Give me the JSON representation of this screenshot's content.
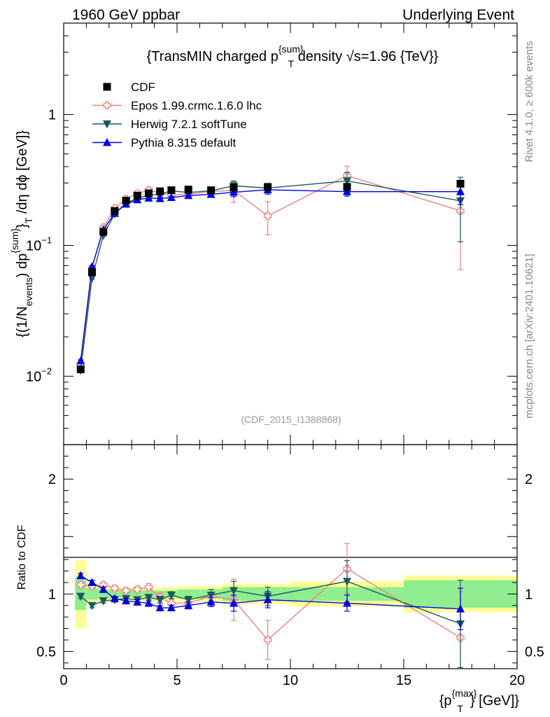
{
  "header": {
    "left": "1960 GeV ppbar",
    "right": "Underlying Event"
  },
  "side_labels": {
    "rivet": "Rivet 4.1.0, ≥ 600k events",
    "mcplots": "mcplots.cern.ch [arXiv:2401.10621]"
  },
  "chart_data": {
    "type": "line",
    "title": "{TransMIN charged p^{sum}_T density √s=1.96 {TeV}}",
    "title_parts": {
      "prefix": "{TransMIN charged p",
      "sup": "{sum}",
      "sub": "T",
      "suffix": " density √s=1.96 {TeV}}"
    },
    "analysis_id": "(CDF_2015_I1388868)",
    "xlabel": "{p_T^{max}} [GeV]}",
    "xlabel_parts": {
      "prefix": "{p",
      "sup": "{max}",
      "sub": "T",
      "suffix": "} [GeV]}"
    },
    "ylabel": "{(1/N_events) dp^{sum}_T /dη dϕ [GeV]}",
    "ylabel_parts": {
      "p1": "{(1/N",
      "sub1": "events",
      "p2": ") dp",
      "sup2": "{sum}",
      "p3": "}",
      "sub3": "T",
      "p4": " /dη  dϕ [GeV]}"
    },
    "ratio_ylabel": "Ratio to CDF",
    "xlim": [
      0,
      20
    ],
    "ylim": [
      0.003,
      5
    ],
    "yscale": "log",
    "ratio_ylim": [
      0.35,
      2.3
    ],
    "x_ticks": [
      "0",
      "5",
      "10",
      "15",
      "20"
    ],
    "y_tick_labels": [
      {
        "value": 0.01,
        "base": "10",
        "exp": "−2"
      },
      {
        "value": 0.1,
        "base": "10",
        "exp": "−1"
      },
      {
        "value": 1,
        "base": "1",
        "exp": ""
      }
    ],
    "ratio_y_ticks": [
      "0.5",
      "1",
      "2"
    ],
    "legend_position": "top-left",
    "bins": [
      {
        "lo": 0.5,
        "hi": 1.0,
        "x": 0.75
      },
      {
        "lo": 1.0,
        "hi": 1.5,
        "x": 1.25
      },
      {
        "lo": 1.5,
        "hi": 2.0,
        "x": 1.75
      },
      {
        "lo": 2.0,
        "hi": 2.5,
        "x": 2.25
      },
      {
        "lo": 2.5,
        "hi": 3.0,
        "x": 2.75
      },
      {
        "lo": 3.0,
        "hi": 3.5,
        "x": 3.25
      },
      {
        "lo": 3.5,
        "hi": 4.0,
        "x": 3.75
      },
      {
        "lo": 4.0,
        "hi": 4.5,
        "x": 4.25
      },
      {
        "lo": 4.5,
        "hi": 5.0,
        "x": 4.75
      },
      {
        "lo": 5.0,
        "hi": 6.0,
        "x": 5.5
      },
      {
        "lo": 6.0,
        "hi": 7.0,
        "x": 6.5
      },
      {
        "lo": 7.0,
        "hi": 8.0,
        "x": 7.5
      },
      {
        "lo": 8.0,
        "hi": 10.0,
        "x": 9.0
      },
      {
        "lo": 10.0,
        "hi": 15.0,
        "x": 12.5
      },
      {
        "lo": 15.0,
        "hi": 20.0,
        "x": 17.5
      }
    ],
    "data": {
      "name": "CDF",
      "color": "#000000",
      "y": [
        0.0113,
        0.0625,
        0.127,
        0.183,
        0.22,
        0.24,
        0.25,
        0.259,
        0.264,
        0.267,
        0.264,
        0.277,
        0.28,
        0.28,
        0.296
      ],
      "band_stat": [
        0.14,
        0.05,
        0.04,
        0.035,
        0.03,
        0.03,
        0.03,
        0.03,
        0.03,
        0.04,
        0.04,
        0.06,
        0.06,
        0.06,
        0.12
      ],
      "band_tot": [
        0.3,
        0.09,
        0.07,
        0.065,
        0.06,
        0.06,
        0.06,
        0.06,
        0.06,
        0.07,
        0.07,
        0.09,
        0.09,
        0.11,
        0.16
      ]
    },
    "series": [
      {
        "name": "Epos 1.99.crmc.1.6.0 lhc",
        "color": "#f08080",
        "marker": "open-cross",
        "ratio": [
          1.08,
          1.07,
          1.08,
          1.05,
          1.03,
          1.04,
          1.06,
          0.97,
          0.92,
          0.92,
          0.98,
          0.95,
          0.6,
          1.22,
          0.62
        ],
        "ratio_err": [
          0.02,
          0.02,
          0.02,
          0.02,
          0.02,
          0.02,
          0.03,
          0.04,
          0.04,
          0.04,
          0.06,
          0.18,
          0.17,
          0.22,
          0.4
        ]
      },
      {
        "name": "Herwig 7.2.1 softTune",
        "color": "#1c5a5a",
        "marker": "triangle-down",
        "ratio": [
          0.98,
          0.9,
          0.94,
          0.95,
          0.96,
          0.95,
          0.97,
          0.95,
          0.99,
          0.95,
          0.99,
          1.03,
          0.98,
          1.11,
          0.74
        ],
        "ratio_err": [
          0.02,
          0.02,
          0.02,
          0.02,
          0.02,
          0.02,
          0.02,
          0.03,
          0.03,
          0.03,
          0.05,
          0.08,
          0.08,
          0.18,
          0.38
        ]
      },
      {
        "name": "Pythia 8.315 default",
        "color": "#0000dd",
        "marker": "triangle-up",
        "ratio": [
          1.16,
          1.1,
          1.04,
          0.96,
          0.94,
          0.93,
          0.92,
          0.88,
          0.88,
          0.9,
          0.93,
          0.92,
          0.95,
          0.92,
          0.87
        ],
        "ratio_err": [
          0.02,
          0.02,
          0.02,
          0.02,
          0.02,
          0.02,
          0.02,
          0.02,
          0.02,
          0.03,
          0.04,
          0.07,
          0.07,
          0.07,
          0.18
        ]
      }
    ],
    "colors": {
      "band_inner": "#90ee90",
      "band_outer": "#ffff99",
      "axis": "#000000",
      "side_text": "#888888"
    }
  }
}
